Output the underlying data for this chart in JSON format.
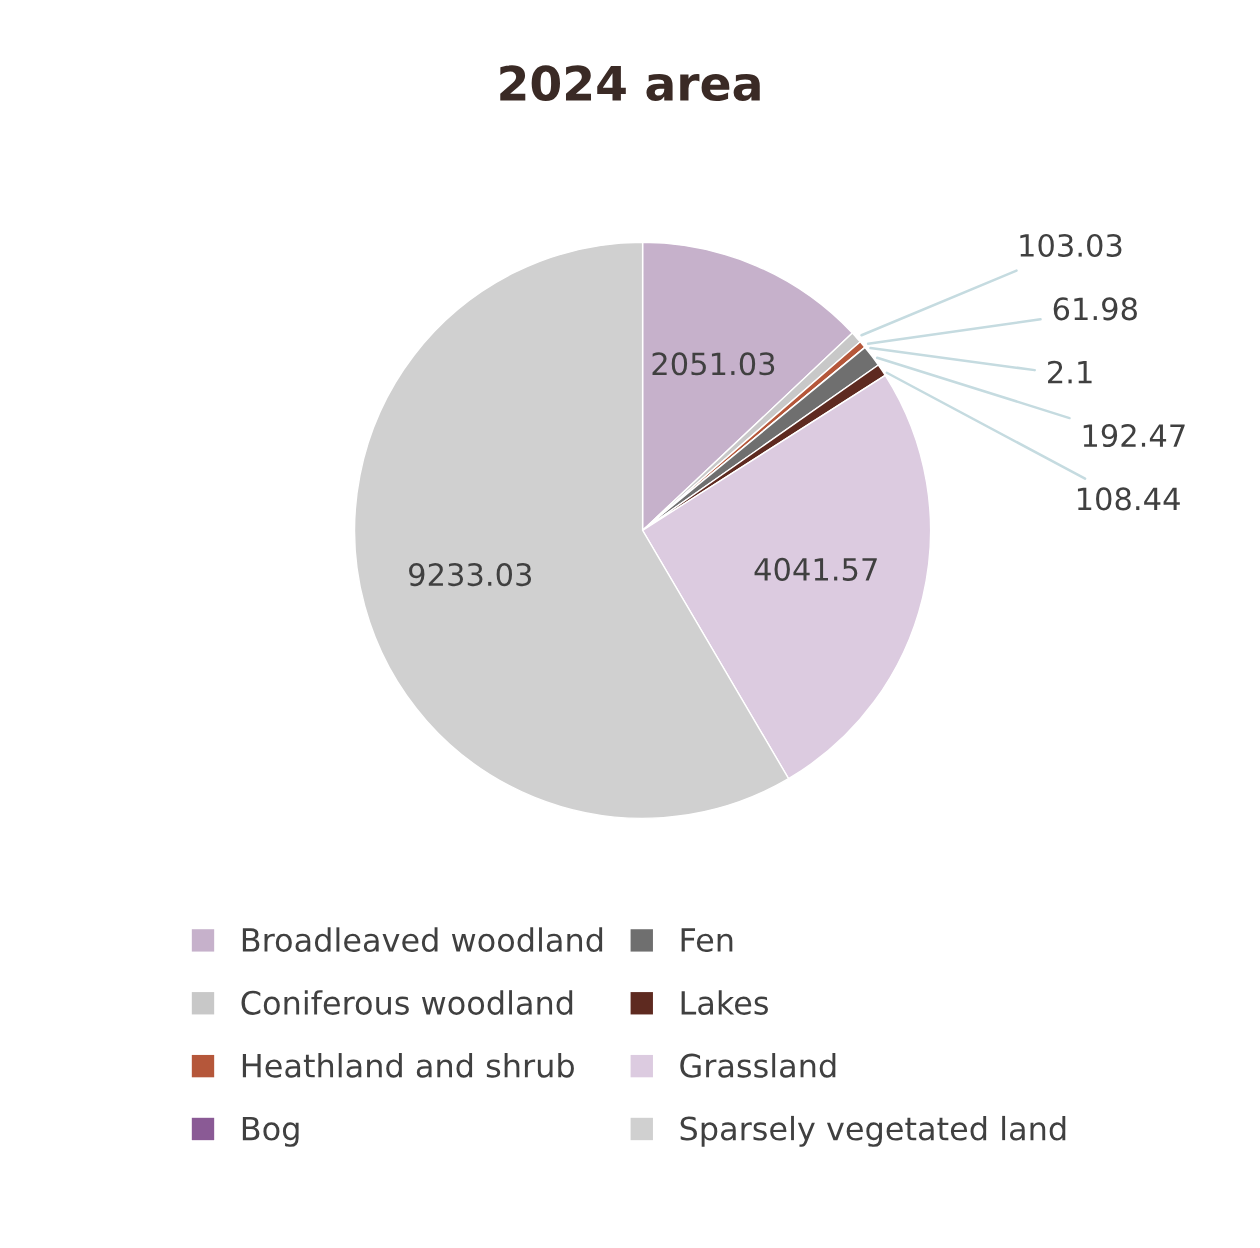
{
  "chart_data": {
    "type": "pie",
    "title": "2024 area",
    "categories": [
      "Broadleaved woodland",
      "Coniferous woodland",
      "Heathland and shrub",
      "Bog",
      "Fen",
      "Lakes",
      "Grassland",
      "Sparsely vegetated land"
    ],
    "values": [
      2051.03,
      103.03,
      61.98,
      2.1,
      192.47,
      108.44,
      4041.57,
      9233.03
    ],
    "colors": [
      "#c6b1cb",
      "#c8c8c8",
      "#b5573a",
      "#8a5a95",
      "#6f6f6f",
      "#5e2a20",
      "#dccbe0",
      "#d0d0d0"
    ],
    "data_labels": true,
    "legend": "bottom"
  }
}
